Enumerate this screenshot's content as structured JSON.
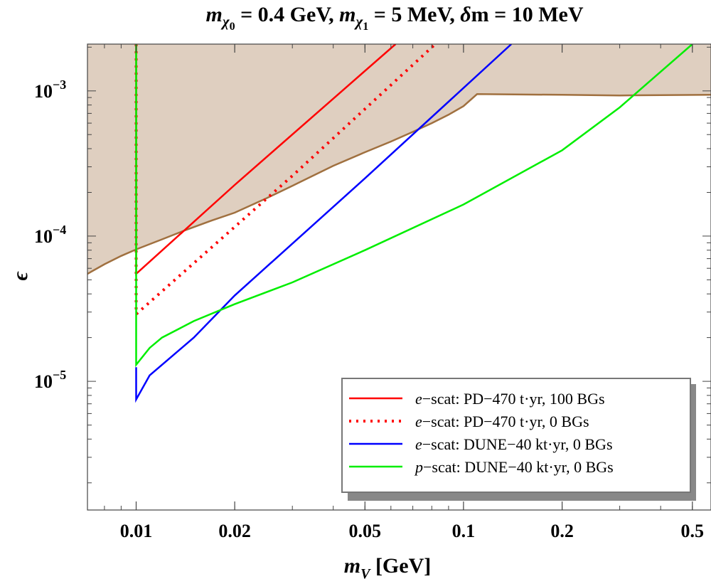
{
  "chart_data": {
    "type": "line",
    "title_parts": {
      "m": "m",
      "chi": "χ",
      "sub0": "0",
      "sub1": "1",
      "seg1": " = 0.4 GeV, ",
      "seg2": " = 5 MeV, ",
      "delta": "δ",
      "seg3": "m = 10 MeV"
    },
    "xlabel_parts": {
      "m": "m",
      "sub": "V",
      "unit": " [GeV]"
    },
    "ylabel": "ϵ",
    "x_scale": "log",
    "y_scale": "log",
    "xlim": [
      0.0071,
      0.57
    ],
    "ylim": [
      1.3e-06,
      0.0021
    ],
    "x_ticks": [
      {
        "v": 0.01,
        "label": "0.01"
      },
      {
        "v": 0.02,
        "label": "0.02"
      },
      {
        "v": 0.05,
        "label": "0.05"
      },
      {
        "v": 0.1,
        "label": "0.1"
      },
      {
        "v": 0.2,
        "label": "0.2"
      },
      {
        "v": 0.5,
        "label": "0.5"
      }
    ],
    "y_ticks": [
      {
        "v": 1e-05,
        "base": "10",
        "exp": "−5"
      },
      {
        "v": 0.0001,
        "base": "10",
        "exp": "−4"
      },
      {
        "v": 0.001,
        "base": "10",
        "exp": "−3"
      }
    ],
    "excluded_region": {
      "fill": "#dfcfc0",
      "edge": "#a0703f",
      "boundary": [
        [
          0.0071,
          5.5e-05
        ],
        [
          0.008,
          6.4e-05
        ],
        [
          0.009,
          7.3e-05
        ],
        [
          0.01,
          8.1e-05
        ],
        [
          0.012,
          9.5e-05
        ],
        [
          0.014,
          0.000109
        ],
        [
          0.017,
          0.000128
        ],
        [
          0.02,
          0.000145
        ],
        [
          0.025,
          0.000182
        ],
        [
          0.03,
          0.000222
        ],
        [
          0.04,
          0.000305
        ],
        [
          0.05,
          0.000378
        ],
        [
          0.06,
          0.000448
        ],
        [
          0.07,
          0.000522
        ],
        [
          0.08,
          0.0006
        ],
        [
          0.09,
          0.000685
        ],
        [
          0.1,
          0.000785
        ],
        [
          0.11,
          0.00095
        ],
        [
          0.2,
          0.00094
        ],
        [
          0.3,
          0.00093
        ],
        [
          0.4,
          0.000935
        ],
        [
          0.57,
          0.00094
        ]
      ]
    },
    "series": [
      {
        "name_parts": {
          "italic": "e",
          "rest": "−scat: PD−470 t·yr, 100 BGs"
        },
        "color": "#ff0000",
        "dash": "solid",
        "points": [
          [
            0.01,
            0.0021
          ],
          [
            0.01,
            5.5e-05
          ],
          [
            0.02,
            0.000225
          ],
          [
            0.062,
            0.0021
          ]
        ]
      },
      {
        "name_parts": {
          "italic": "e",
          "rest": "−scat: PD−470 t·yr, 0 BGs"
        },
        "color": "#ff0000",
        "dash": "dotted",
        "points": [
          [
            0.01,
            0.0021
          ],
          [
            0.01,
            2.9e-05
          ],
          [
            0.03,
            0.00026
          ],
          [
            0.082,
            0.0021
          ]
        ]
      },
      {
        "name_parts": {
          "italic": "e",
          "rest": "−scat: DUNE−40 kt·yr, 0 BGs"
        },
        "color": "#0000ff",
        "dash": "solid",
        "points": [
          [
            0.01,
            1.25e-05
          ],
          [
            0.01,
            7.5e-06
          ],
          [
            0.011,
            1.1e-05
          ],
          [
            0.015,
            2e-05
          ],
          [
            0.02,
            3.9e-05
          ],
          [
            0.05,
            0.00025
          ],
          [
            0.14,
            0.0021
          ]
        ]
      },
      {
        "name_parts": {
          "italic": "p",
          "rest": "−scat: DUNE−40 kt·yr, 0 BGs"
        },
        "color": "#00ee00",
        "dash": "solid",
        "points": [
          [
            0.01,
            0.0021
          ],
          [
            0.01,
            1.3e-05
          ],
          [
            0.011,
            1.7e-05
          ],
          [
            0.012,
            2e-05
          ],
          [
            0.015,
            2.6e-05
          ],
          [
            0.02,
            3.4e-05
          ],
          [
            0.03,
            4.8e-05
          ],
          [
            0.05,
            8e-05
          ],
          [
            0.1,
            0.000165
          ],
          [
            0.2,
            0.00039
          ],
          [
            0.3,
            0.00077
          ],
          [
            0.5,
            0.0021
          ]
        ]
      }
    ]
  }
}
